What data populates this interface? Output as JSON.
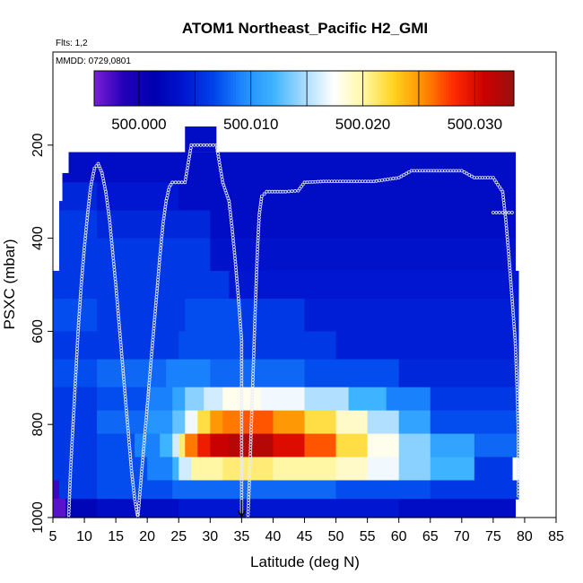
{
  "chart_data": {
    "type": "heatmap",
    "title": "ATOM1 Northeast_Pacific H2_GMI",
    "annotations": [
      "Flts: 1,2",
      "MMDD: 0729,0801"
    ],
    "xlabel": "Latitude (deg N)",
    "ylabel": "PSXC (mbar)",
    "xlim": [
      5,
      85
    ],
    "ylim": [
      1000,
      0
    ],
    "x_ticks": [
      5,
      10,
      15,
      20,
      25,
      30,
      35,
      40,
      45,
      50,
      55,
      60,
      65,
      70,
      75,
      80,
      85
    ],
    "x_tick_labels": [
      "5",
      "10",
      "15",
      "20",
      "25",
      "30",
      "35",
      "40",
      "45",
      "50",
      "55",
      "60",
      "65",
      "70",
      "75",
      "80",
      "85"
    ],
    "y_ticks": [
      200,
      400,
      600,
      800,
      1000
    ],
    "y_tick_labels": [
      "200",
      "400",
      "600",
      "800",
      "1000"
    ],
    "colorbar": {
      "min": 499.996,
      "max": 500.0335,
      "tick_values": [
        500.0,
        500.01,
        500.02,
        500.03
      ],
      "tick_labels": [
        "500.000",
        "500.010",
        "500.020",
        "500.030"
      ],
      "boundaries": [
        500.0,
        500.005,
        500.01,
        500.015,
        500.02,
        500.025,
        500.03
      ],
      "colors": [
        "#7b1fd6",
        "#2200b8",
        "#0000b0",
        "#0016d0",
        "#0044ec",
        "#1f8cff",
        "#3fb4ff",
        "#a8dcff",
        "#ffffff",
        "#fff7a0",
        "#ffd21e",
        "#ff8c00",
        "#ff2a00",
        "#cc0000",
        "#9a1010"
      ]
    },
    "arrow_marker": {
      "x": 35,
      "y": 1000,
      "direction": "down"
    },
    "grid": false,
    "legend": "none",
    "columns": [
      {
        "x0": 5.0,
        "x1": 6.0,
        "p_top": 470,
        "p_bot": 1000
      },
      {
        "x0": 6.0,
        "x1": 6.5,
        "p_top": 320,
        "p_bot": 1000
      },
      {
        "x0": 6.5,
        "x1": 7.5,
        "p_top": 260,
        "p_bot": 1000
      },
      {
        "x0": 7.5,
        "x1": 14.0,
        "p_top": 215,
        "p_bot": 1000
      },
      {
        "x0": 14.0,
        "x1": 26.0,
        "p_top": 215,
        "p_bot": 1000
      },
      {
        "x0": 26.0,
        "x1": 31.0,
        "p_top": 160,
        "p_bot": 1000
      },
      {
        "x0": 31.0,
        "x1": 78.5,
        "p_top": 215,
        "p_bot": 1000
      },
      {
        "x0": 78.5,
        "x1": 79.5,
        "p_top": 470,
        "p_bot": 960
      }
    ],
    "bands": [
      {
        "p0": 215,
        "p1": 280,
        "segments": [
          {
            "x0": 6,
            "x1": 78.5,
            "v": 500.003
          }
        ]
      },
      {
        "p0": 280,
        "p1": 340,
        "segments": [
          {
            "x0": 6,
            "x1": 12,
            "v": 500.005
          },
          {
            "x0": 12,
            "x1": 25,
            "v": 500.004
          },
          {
            "x0": 25,
            "x1": 78.5,
            "v": 500.003
          }
        ]
      },
      {
        "p0": 340,
        "p1": 400,
        "segments": [
          {
            "x0": 6,
            "x1": 12,
            "v": 500.006
          },
          {
            "x0": 12,
            "x1": 30,
            "v": 500.005
          },
          {
            "x0": 30,
            "x1": 78.5,
            "v": 500.003
          }
        ]
      },
      {
        "p0": 400,
        "p1": 470,
        "segments": [
          {
            "x0": 6,
            "x1": 12,
            "v": 500.006
          },
          {
            "x0": 12,
            "x1": 30,
            "v": 500.006
          },
          {
            "x0": 30,
            "x1": 78.5,
            "v": 500.0035
          }
        ]
      },
      {
        "p0": 470,
        "p1": 530,
        "segments": [
          {
            "x0": 5,
            "x1": 12,
            "v": 500.006
          },
          {
            "x0": 12,
            "x1": 33,
            "v": 500.006
          },
          {
            "x0": 33,
            "x1": 79,
            "v": 500.004
          }
        ]
      },
      {
        "p0": 530,
        "p1": 600,
        "segments": [
          {
            "x0": 5,
            "x1": 12,
            "v": 500.007
          },
          {
            "x0": 12,
            "x1": 26,
            "v": 500.006
          },
          {
            "x0": 26,
            "x1": 35,
            "v": 500.007
          },
          {
            "x0": 35,
            "x1": 45,
            "v": 500.006
          },
          {
            "x0": 45,
            "x1": 79,
            "v": 500.0045
          }
        ]
      },
      {
        "p0": 600,
        "p1": 660,
        "segments": [
          {
            "x0": 5,
            "x1": 12,
            "v": 500.006
          },
          {
            "x0": 12,
            "x1": 25,
            "v": 500.006
          },
          {
            "x0": 25,
            "x1": 35,
            "v": 500.007
          },
          {
            "x0": 35,
            "x1": 50,
            "v": 500.006
          },
          {
            "x0": 50,
            "x1": 79,
            "v": 500.0045
          }
        ]
      },
      {
        "p0": 660,
        "p1": 720,
        "segments": [
          {
            "x0": 5,
            "x1": 12,
            "v": 500.007
          },
          {
            "x0": 12,
            "x1": 23,
            "v": 500.008
          },
          {
            "x0": 23,
            "x1": 30,
            "v": 500.009
          },
          {
            "x0": 30,
            "x1": 45,
            "v": 500.008
          },
          {
            "x0": 45,
            "x1": 60,
            "v": 500.007
          },
          {
            "x0": 60,
            "x1": 79,
            "v": 500.005
          }
        ]
      },
      {
        "p0": 720,
        "p1": 770,
        "segments": [
          {
            "x0": 5,
            "x1": 12,
            "v": 500.006
          },
          {
            "x0": 12,
            "x1": 20,
            "v": 500.007
          },
          {
            "x0": 20,
            "x1": 24,
            "v": 500.009
          },
          {
            "x0": 24,
            "x1": 26,
            "v": 500.011
          },
          {
            "x0": 26,
            "x1": 29,
            "v": 500.014
          },
          {
            "x0": 29,
            "x1": 32,
            "v": 500.016
          },
          {
            "x0": 32,
            "x1": 38,
            "v": 500.018
          },
          {
            "x0": 38,
            "x1": 45,
            "v": 500.017
          },
          {
            "x0": 45,
            "x1": 52,
            "v": 500.015
          },
          {
            "x0": 52,
            "x1": 58,
            "v": 500.012
          },
          {
            "x0": 58,
            "x1": 65,
            "v": 500.009
          },
          {
            "x0": 65,
            "x1": 79,
            "v": 500.006
          }
        ]
      },
      {
        "p0": 770,
        "p1": 820,
        "segments": [
          {
            "x0": 5,
            "x1": 12,
            "v": 500.006
          },
          {
            "x0": 12,
            "x1": 20,
            "v": 500.008
          },
          {
            "x0": 20,
            "x1": 24,
            "v": 500.01
          },
          {
            "x0": 24,
            "x1": 26,
            "v": 500.013
          },
          {
            "x0": 26,
            "x1": 28,
            "v": 500.017
          },
          {
            "x0": 28,
            "x1": 30,
            "v": 500.022
          },
          {
            "x0": 30,
            "x1": 32,
            "v": 500.025
          },
          {
            "x0": 32,
            "x1": 35,
            "v": 500.026
          },
          {
            "x0": 35,
            "x1": 40,
            "v": 500.027
          },
          {
            "x0": 40,
            "x1": 45,
            "v": 500.025
          },
          {
            "x0": 45,
            "x1": 50,
            "v": 500.022
          },
          {
            "x0": 50,
            "x1": 55,
            "v": 500.019
          },
          {
            "x0": 55,
            "x1": 60,
            "v": 500.015
          },
          {
            "x0": 60,
            "x1": 65,
            "v": 500.011
          },
          {
            "x0": 65,
            "x1": 79,
            "v": 500.007
          }
        ]
      },
      {
        "p0": 820,
        "p1": 870,
        "segments": [
          {
            "x0": 5,
            "x1": 12,
            "v": 500.006
          },
          {
            "x0": 12,
            "x1": 18,
            "v": 500.007
          },
          {
            "x0": 18,
            "x1": 22,
            "v": 500.009
          },
          {
            "x0": 22,
            "x1": 24,
            "v": 500.012
          },
          {
            "x0": 24,
            "x1": 25,
            "v": 500.016
          },
          {
            "x0": 25,
            "x1": 26,
            "v": 500.021
          },
          {
            "x0": 26,
            "x1": 28,
            "v": 500.026
          },
          {
            "x0": 28,
            "x1": 30,
            "v": 500.029
          },
          {
            "x0": 30,
            "x1": 33,
            "v": 500.031
          },
          {
            "x0": 33,
            "x1": 40,
            "v": 500.032
          },
          {
            "x0": 40,
            "x1": 45,
            "v": 500.03
          },
          {
            "x0": 45,
            "x1": 50,
            "v": 500.027
          },
          {
            "x0": 50,
            "x1": 55,
            "v": 500.022
          },
          {
            "x0": 55,
            "x1": 60,
            "v": 500.018
          },
          {
            "x0": 60,
            "x1": 65,
            "v": 500.014
          },
          {
            "x0": 65,
            "x1": 72,
            "v": 500.011
          },
          {
            "x0": 72,
            "x1": 79,
            "v": 500.008
          }
        ]
      },
      {
        "p0": 870,
        "p1": 920,
        "segments": [
          {
            "x0": 5,
            "x1": 12,
            "v": 500.006
          },
          {
            "x0": 12,
            "x1": 20,
            "v": 500.007
          },
          {
            "x0": 20,
            "x1": 24,
            "v": 500.009
          },
          {
            "x0": 24,
            "x1": 25,
            "v": 500.012
          },
          {
            "x0": 25,
            "x1": 27,
            "v": 500.016
          },
          {
            "x0": 27,
            "x1": 32,
            "v": 500.02
          },
          {
            "x0": 32,
            "x1": 40,
            "v": 500.021
          },
          {
            "x0": 40,
            "x1": 50,
            "v": 500.02
          },
          {
            "x0": 50,
            "x1": 55,
            "v": 500.019
          },
          {
            "x0": 55,
            "x1": 60,
            "v": 500.017
          },
          {
            "x0": 60,
            "x1": 65,
            "v": 500.014
          },
          {
            "x0": 65,
            "x1": 72,
            "v": 500.012
          },
          {
            "x0": 72,
            "x1": 78,
            "v": 500.006
          }
        ]
      },
      {
        "p0": 920,
        "p1": 960,
        "segments": [
          {
            "x0": 5,
            "x1": 6,
            "v": 499.998
          },
          {
            "x0": 6,
            "x1": 12,
            "v": 500.006
          },
          {
            "x0": 12,
            "x1": 24,
            "v": 500.007
          },
          {
            "x0": 24,
            "x1": 35,
            "v": 500.008
          },
          {
            "x0": 35,
            "x1": 50,
            "v": 500.008
          },
          {
            "x0": 50,
            "x1": 65,
            "v": 500.007
          },
          {
            "x0": 65,
            "x1": 79,
            "v": 500.006
          }
        ]
      },
      {
        "p0": 960,
        "p1": 1000,
        "segments": [
          {
            "x0": 5,
            "x1": 7,
            "v": 499.997
          },
          {
            "x0": 7,
            "x1": 12,
            "v": 500.002
          },
          {
            "x0": 12,
            "x1": 25,
            "v": 500.003
          },
          {
            "x0": 25,
            "x1": 40,
            "v": 500.004
          },
          {
            "x0": 40,
            "x1": 60,
            "v": 500.004
          },
          {
            "x0": 60,
            "x1": 78.5,
            "v": 500.003
          }
        ]
      }
    ],
    "flight_tracks": [
      {
        "name": "track-1",
        "points": [
          [
            7.5,
            1000
          ],
          [
            7.8,
            900
          ],
          [
            8.2,
            800
          ],
          [
            8.6,
            700
          ],
          [
            9.0,
            600
          ],
          [
            9.5,
            500
          ],
          [
            10.0,
            420
          ],
          [
            10.5,
            350
          ],
          [
            11.0,
            290
          ],
          [
            11.6,
            250
          ],
          [
            12.2,
            240
          ],
          [
            12.8,
            260
          ],
          [
            13.4,
            300
          ],
          [
            14.0,
            360
          ],
          [
            14.5,
            430
          ],
          [
            15.0,
            500
          ],
          [
            15.5,
            580
          ],
          [
            16.0,
            660
          ],
          [
            16.5,
            740
          ],
          [
            17.0,
            820
          ],
          [
            17.5,
            900
          ],
          [
            18.0,
            960
          ],
          [
            18.5,
            1000
          ]
        ]
      },
      {
        "name": "track-2",
        "points": [
          [
            18.5,
            1000
          ],
          [
            19.0,
            920
          ],
          [
            19.5,
            840
          ],
          [
            20.0,
            760
          ],
          [
            20.5,
            680
          ],
          [
            21.0,
            600
          ],
          [
            21.5,
            520
          ],
          [
            22.0,
            440
          ],
          [
            22.5,
            370
          ],
          [
            23.0,
            320
          ],
          [
            23.5,
            290
          ],
          [
            24.0,
            280
          ],
          [
            25.0,
            280
          ],
          [
            26.0,
            280
          ],
          [
            27.0,
            200
          ],
          [
            29.0,
            200
          ],
          [
            31.0,
            200
          ],
          [
            32.0,
            280
          ],
          [
            33.0,
            320
          ],
          [
            33.5,
            380
          ],
          [
            34.0,
            450
          ],
          [
            34.5,
            530
          ],
          [
            35.0,
            620
          ],
          [
            35.0,
            700
          ],
          [
            35.0,
            790
          ],
          [
            35.0,
            860
          ],
          [
            35.0,
            940
          ],
          [
            35.0,
            1000
          ]
        ]
      },
      {
        "name": "track-3",
        "points": [
          [
            36.0,
            1000
          ],
          [
            36.3,
            900
          ],
          [
            36.6,
            780
          ],
          [
            36.9,
            660
          ],
          [
            37.2,
            540
          ],
          [
            37.5,
            430
          ],
          [
            37.8,
            350
          ],
          [
            38.2,
            310
          ],
          [
            39.0,
            300
          ],
          [
            42.0,
            300
          ],
          [
            44.0,
            298
          ],
          [
            45.0,
            280
          ],
          [
            48.0,
            278
          ],
          [
            52.0,
            278
          ],
          [
            56.0,
            278
          ],
          [
            60.0,
            270
          ],
          [
            62.0,
            255
          ],
          [
            66.0,
            255
          ],
          [
            70.0,
            255
          ],
          [
            72.0,
            270
          ],
          [
            75.0,
            270
          ],
          [
            76.5,
            300
          ],
          [
            77.0,
            360
          ],
          [
            77.5,
            440
          ],
          [
            78.0,
            530
          ],
          [
            78.5,
            620
          ],
          [
            78.8,
            720
          ],
          [
            79.0,
            820
          ],
          [
            79.0,
            920
          ],
          [
            79.0,
            960
          ]
        ]
      },
      {
        "name": "track-4",
        "points": [
          [
            75.0,
            345
          ],
          [
            77.0,
            345
          ],
          [
            78.5,
            345
          ]
        ]
      }
    ]
  }
}
